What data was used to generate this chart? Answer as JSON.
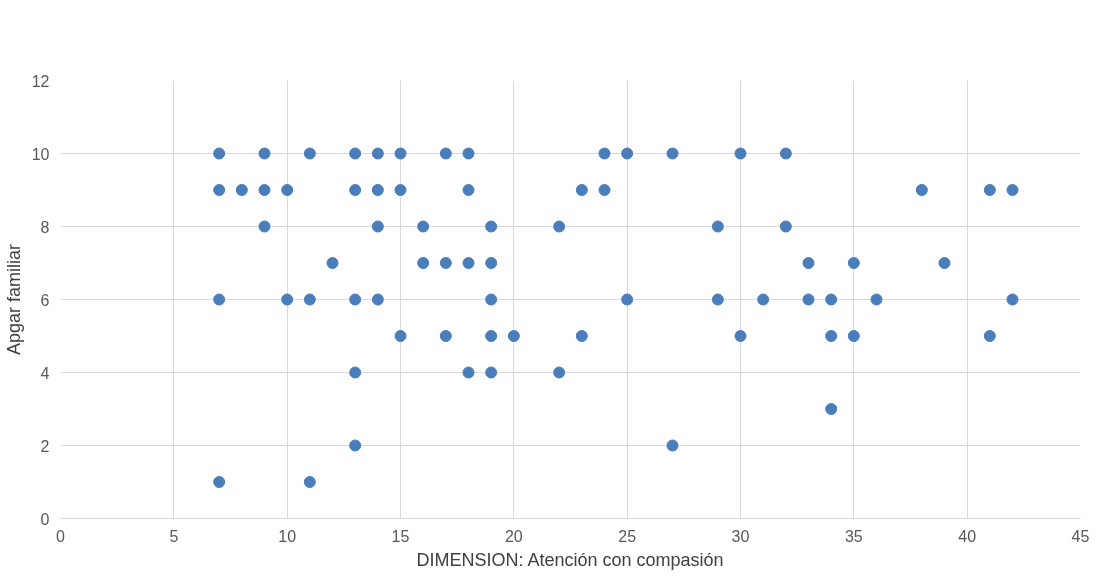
{
  "chart_data": {
    "type": "scatter",
    "xlabel": "DIMENSION: Atención con compasión",
    "ylabel": "Apgar familiar",
    "x": [
      7,
      9,
      11,
      13,
      14,
      15,
      17,
      18,
      24,
      25,
      27,
      30,
      32,
      7,
      8,
      9,
      10,
      13,
      14,
      15,
      18,
      23,
      24,
      38,
      41,
      42,
      9,
      14,
      16,
      19,
      22,
      29,
      32,
      12,
      16,
      17,
      18,
      19,
      33,
      35,
      39,
      7,
      10,
      11,
      13,
      14,
      19,
      25,
      29,
      31,
      33,
      34,
      36,
      42,
      15,
      17,
      19,
      20,
      23,
      30,
      34,
      35,
      41,
      13,
      18,
      19,
      22,
      34,
      13,
      27,
      7,
      11
    ],
    "series": [
      {
        "color": "#4a7ebb",
        "values": [
          10,
          10,
          10,
          10,
          10,
          10,
          10,
          10,
          10,
          10,
          10,
          10,
          10,
          9,
          9,
          9,
          9,
          9,
          9,
          9,
          9,
          9,
          9,
          9,
          9,
          9,
          8,
          8,
          8,
          8,
          8,
          8,
          8,
          7,
          7,
          7,
          7,
          7,
          7,
          7,
          7,
          6,
          6,
          6,
          6,
          6,
          6,
          6,
          6,
          6,
          6,
          6,
          6,
          6,
          5,
          5,
          5,
          5,
          5,
          5,
          5,
          5,
          5,
          4,
          4,
          4,
          4,
          3,
          2,
          2,
          1,
          1
        ]
      }
    ],
    "xlim": [
      0,
      45
    ],
    "xticks": [
      0,
      5,
      10,
      15,
      20,
      25,
      30,
      35,
      40,
      45
    ],
    "ylim": [
      0,
      12
    ],
    "yticks": [
      0,
      2,
      4,
      6,
      8,
      10,
      12
    ],
    "grid": true,
    "marker": "circle"
  }
}
